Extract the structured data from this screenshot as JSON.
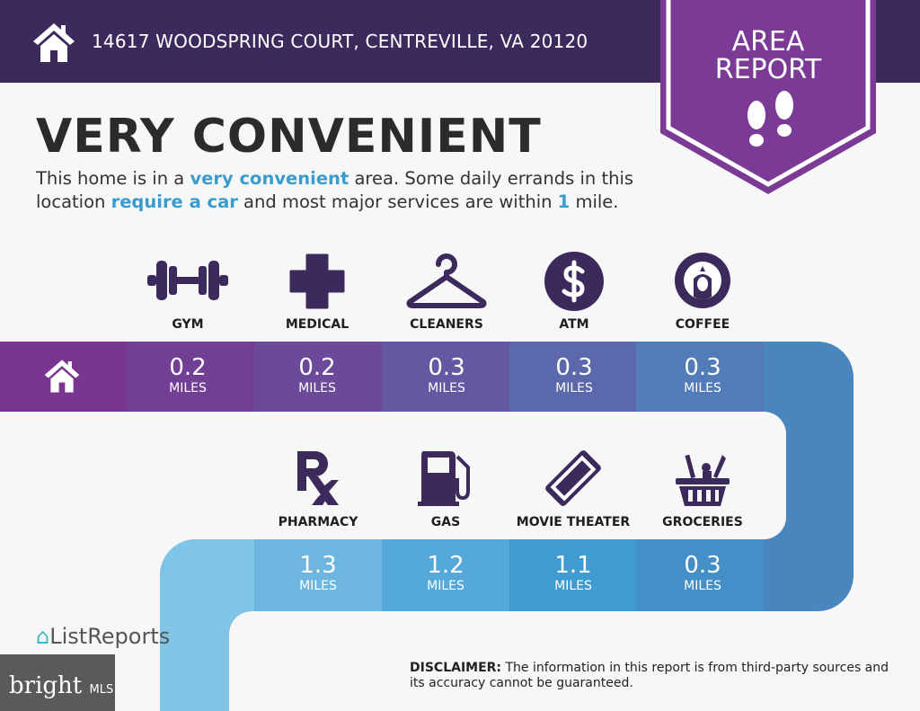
{
  "header": {
    "address": "14617 WOODSPRING COURT, CENTREVILLE, VA 20120",
    "icon": "home-icon",
    "badge_line1": "AREA",
    "badge_line2": "REPORT",
    "badge_icon": "footprints-icon"
  },
  "headline": "VERY CONVENIENT",
  "description": {
    "p1": "This home is in a ",
    "h1": "very convenient",
    "p2": " area. Some daily errands in this location ",
    "h2": "require a car",
    "p3": " and most major services are within ",
    "h3": "1",
    "p4": " mile."
  },
  "row1": [
    {
      "label": "GYM",
      "icon": "dumbbell-icon",
      "value": "0.2",
      "unit": "MILES"
    },
    {
      "label": "MEDICAL",
      "icon": "medical-cross-icon",
      "value": "0.2",
      "unit": "MILES"
    },
    {
      "label": "CLEANERS",
      "icon": "hanger-icon",
      "value": "0.3",
      "unit": "MILES"
    },
    {
      "label": "ATM",
      "icon": "dollar-icon",
      "value": "0.3",
      "unit": "MILES"
    },
    {
      "label": "COFFEE",
      "icon": "starbucks-icon",
      "value": "0.3",
      "unit": "MILES"
    }
  ],
  "row2": [
    {
      "label": "PHARMACY",
      "icon": "rx-icon",
      "value": "1.3",
      "unit": "MILES"
    },
    {
      "label": "GAS",
      "icon": "gas-pump-icon",
      "value": "1.2",
      "unit": "MILES"
    },
    {
      "label": "MOVIE THEATER",
      "icon": "ticket-icon",
      "value": "1.1",
      "unit": "MILES"
    },
    {
      "label": "GROCERIES",
      "icon": "basket-icon",
      "value": "0.3",
      "unit": "MILES"
    }
  ],
  "footer": {
    "disclaimer_label": "DISCLAIMER:",
    "disclaimer": " The information in this report is from third-party sources and its accuracy cannot be guaranteed.",
    "logo": "ListReports",
    "watermark": "bright",
    "watermark_suffix": "MLS"
  },
  "colors": {
    "header": "#3d2a5c",
    "badge": "#7b3a96",
    "accent": "#3a9ccc",
    "icon": "#3d2a5c"
  }
}
